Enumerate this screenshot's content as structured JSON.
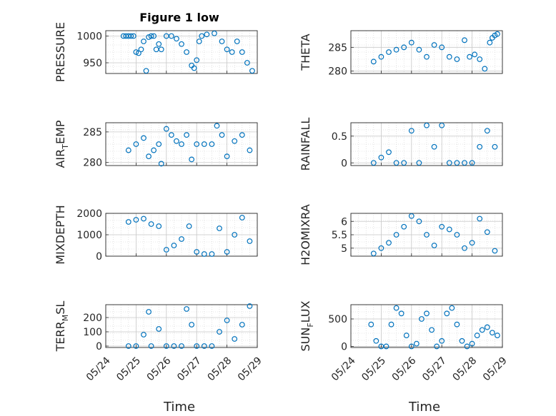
{
  "title": "Figure 1 low",
  "xlabel": "Time",
  "x_ticks": [
    "05/24",
    "05/25",
    "05/26",
    "05/27",
    "05/28",
    "05/29"
  ],
  "marker_color": "#0072BD",
  "chart_data": [
    {
      "type": "scatter",
      "ylabel_main": "PRESSURE",
      "ylabel_sub": "",
      "ylabel_tail": "",
      "ylim": [
        930,
        1010
      ],
      "yticks": [
        950,
        1000
      ],
      "ytick_labels": [
        "950",
        "1000"
      ],
      "grid": true,
      "x": [
        "05/24 14:00",
        "05/24 16:00",
        "05/24 18:00",
        "05/24 20:00",
        "05/24 22:00",
        "05/25 00:00",
        "05/25 02:00",
        "05/25 04:00",
        "05/25 06:00",
        "05/25 08:00",
        "05/25 10:00",
        "05/25 12:00",
        "05/25 14:00",
        "05/25 16:00",
        "05/25 18:00",
        "05/25 20:00",
        "05/26 00:00",
        "05/26 04:00",
        "05/26 08:00",
        "05/26 12:00",
        "05/26 16:00",
        "05/26 20:00",
        "05/26 22:00",
        "05/27 00:00",
        "05/27 02:00",
        "05/27 04:00",
        "05/27 08:00",
        "05/27 14:00",
        "05/27 20:00",
        "05/28 00:00",
        "05/28 04:00",
        "05/28 08:00",
        "05/28 12:00",
        "05/28 16:00",
        "05/28 20:00"
      ],
      "y": [
        1000,
        1000,
        1000,
        1000,
        1000,
        970,
        968,
        975,
        990,
        935,
        998,
        1000,
        1000,
        975,
        985,
        975,
        1000,
        1000,
        995,
        985,
        970,
        945,
        940,
        955,
        990,
        1000,
        1003,
        1005,
        990,
        975,
        970,
        990,
        970,
        950,
        935
      ]
    },
    {
      "type": "scatter",
      "ylabel_main": "THETA",
      "ylabel_sub": "",
      "ylabel_tail": "",
      "ylim": [
        279.5,
        288.5
      ],
      "yticks": [
        280,
        285
      ],
      "ytick_labels": [
        "280",
        "285"
      ],
      "grid": true,
      "x": [
        "05/24 18:00",
        "05/25 00:00",
        "05/25 06:00",
        "05/25 12:00",
        "05/25 18:00",
        "05/26 00:00",
        "05/26 06:00",
        "05/26 12:00",
        "05/26 18:00",
        "05/27 00:00",
        "05/27 06:00",
        "05/27 12:00",
        "05/27 18:00",
        "05/27 22:00",
        "05/28 02:00",
        "05/28 06:00",
        "05/28 10:00",
        "05/28 14:00",
        "05/28 16:00",
        "05/28 18:00",
        "05/28 20:00"
      ],
      "y": [
        282,
        283,
        284,
        284.5,
        285,
        286,
        284.5,
        283,
        285.5,
        285,
        283,
        282.5,
        286.5,
        283,
        283.5,
        282.5,
        280.5,
        286,
        287,
        287.5,
        287.8
      ]
    },
    {
      "type": "scatter",
      "ylabel_main": "AIR",
      "ylabel_sub": "T",
      "ylabel_tail": "EMP",
      "ylim": [
        279.5,
        286.5
      ],
      "yticks": [
        280,
        285
      ],
      "ytick_labels": [
        "280",
        "285"
      ],
      "grid": true,
      "x": [
        "05/24 18:00",
        "05/25 00:00",
        "05/25 06:00",
        "05/25 10:00",
        "05/25 14:00",
        "05/25 18:00",
        "05/25 20:00",
        "05/26 00:00",
        "05/26 04:00",
        "05/26 08:00",
        "05/26 12:00",
        "05/26 16:00",
        "05/26 20:00",
        "05/27 00:00",
        "05/27 06:00",
        "05/27 12:00",
        "05/27 16:00",
        "05/27 20:00",
        "05/28 00:00",
        "05/28 06:00",
        "05/28 12:00",
        "05/28 18:00"
      ],
      "y": [
        282,
        283,
        284,
        281,
        282,
        283,
        279.8,
        285.5,
        284.5,
        283.5,
        283,
        284.5,
        280.5,
        283,
        283,
        283,
        286,
        284.5,
        281,
        283.5,
        284.5,
        282
      ]
    },
    {
      "type": "scatter",
      "ylabel_main": "RAINFALL",
      "ylabel_sub": "",
      "ylabel_tail": "",
      "ylim": [
        -0.05,
        0.75
      ],
      "yticks": [
        0,
        0.5
      ],
      "ytick_labels": [
        "0",
        "0.5"
      ],
      "grid": true,
      "x": [
        "05/24 18:00",
        "05/25 00:00",
        "05/25 06:00",
        "05/25 12:00",
        "05/25 18:00",
        "05/26 00:00",
        "05/26 06:00",
        "05/26 12:00",
        "05/26 18:00",
        "05/27 00:00",
        "05/27 06:00",
        "05/27 12:00",
        "05/27 18:00",
        "05/28 00:00",
        "05/28 06:00",
        "05/28 12:00",
        "05/28 18:00"
      ],
      "y": [
        0,
        0.1,
        0.2,
        0,
        0,
        0.6,
        0,
        0.7,
        0.3,
        0.7,
        0,
        0,
        0,
        0,
        0.3,
        0.6,
        0.3
      ]
    },
    {
      "type": "scatter",
      "ylabel_main": "MIXDEPTH",
      "ylabel_sub": "",
      "ylabel_tail": "",
      "ylim": [
        0,
        2000
      ],
      "yticks": [
        0,
        1000,
        2000
      ],
      "ytick_labels": [
        "0",
        "1000",
        "2000"
      ],
      "grid": true,
      "x": [
        "05/24 18:00",
        "05/25 00:00",
        "05/25 06:00",
        "05/25 12:00",
        "05/25 18:00",
        "05/26 00:00",
        "05/26 06:00",
        "05/26 12:00",
        "05/26 18:00",
        "05/27 00:00",
        "05/27 06:00",
        "05/27 12:00",
        "05/27 18:00",
        "05/28 00:00",
        "05/28 06:00",
        "05/28 12:00",
        "05/28 18:00"
      ],
      "y": [
        1600,
        1700,
        1750,
        1500,
        1400,
        300,
        500,
        800,
        1400,
        200,
        100,
        100,
        1300,
        200,
        1000,
        1800,
        700
      ]
    },
    {
      "type": "scatter",
      "ylabel_main": "H2OMIXRA",
      "ylabel_sub": "",
      "ylabel_tail": "",
      "ylim": [
        4.7,
        6.3
      ],
      "yticks": [
        5,
        5.5,
        6
      ],
      "ytick_labels": [
        "5",
        "5.5",
        "6"
      ],
      "grid": true,
      "x": [
        "05/24 18:00",
        "05/25 00:00",
        "05/25 06:00",
        "05/25 12:00",
        "05/25 18:00",
        "05/26 00:00",
        "05/26 06:00",
        "05/26 12:00",
        "05/26 18:00",
        "05/27 00:00",
        "05/27 06:00",
        "05/27 12:00",
        "05/27 18:00",
        "05/28 00:00",
        "05/28 06:00",
        "05/28 12:00",
        "05/28 18:00"
      ],
      "y": [
        4.8,
        5,
        5.2,
        5.5,
        5.8,
        6.2,
        6,
        5.5,
        5.1,
        5.8,
        5.7,
        5.5,
        5,
        5.2,
        6.1,
        5.6,
        4.9
      ]
    },
    {
      "type": "scatter",
      "ylabel_main": "TERR",
      "ylabel_sub": "M",
      "ylabel_tail": "SL",
      "ylim": [
        -10,
        290
      ],
      "yticks": [
        0,
        100,
        200
      ],
      "ytick_labels": [
        "0",
        "100",
        "200"
      ],
      "grid": true,
      "x": [
        "05/24 18:00",
        "05/25 00:00",
        "05/25 06:00",
        "05/25 10:00",
        "05/25 12:00",
        "05/25 18:00",
        "05/26 00:00",
        "05/26 06:00",
        "05/26 12:00",
        "05/26 16:00",
        "05/26 20:00",
        "05/27 00:00",
        "05/27 06:00",
        "05/27 12:00",
        "05/27 18:00",
        "05/28 00:00",
        "05/28 06:00",
        "05/28 12:00",
        "05/28 18:00"
      ],
      "y": [
        0,
        0,
        80,
        240,
        0,
        120,
        0,
        0,
        0,
        260,
        150,
        0,
        0,
        0,
        100,
        180,
        50,
        150,
        280
      ]
    },
    {
      "type": "scatter",
      "ylabel_main": "SUN",
      "ylabel_sub": "F",
      "ylabel_tail": "LUX",
      "ylim": [
        -20,
        760
      ],
      "yticks": [
        0,
        500
      ],
      "ytick_labels": [
        "0",
        "500"
      ],
      "grid": true,
      "x": [
        "05/24 16:00",
        "05/24 20:00",
        "05/25 00:00",
        "05/25 04:00",
        "05/25 08:00",
        "05/25 12:00",
        "05/25 16:00",
        "05/25 20:00",
        "05/26 00:00",
        "05/26 04:00",
        "05/26 08:00",
        "05/26 12:00",
        "05/26 16:00",
        "05/26 20:00",
        "05/27 00:00",
        "05/27 04:00",
        "05/27 08:00",
        "05/27 12:00",
        "05/27 16:00",
        "05/27 20:00",
        "05/28 00:00",
        "05/28 04:00",
        "05/28 08:00",
        "05/28 12:00",
        "05/28 16:00",
        "05/28 20:00"
      ],
      "y": [
        400,
        100,
        0,
        0,
        400,
        700,
        600,
        200,
        0,
        50,
        500,
        600,
        300,
        0,
        100,
        600,
        700,
        400,
        100,
        0,
        50,
        200,
        300,
        350,
        250,
        200
      ]
    }
  ]
}
